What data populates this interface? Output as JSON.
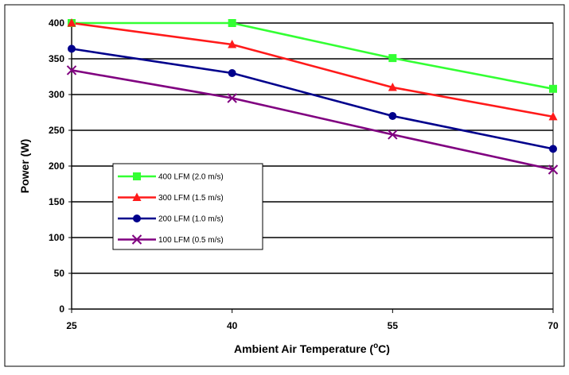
{
  "chart_data": {
    "type": "line",
    "title": "",
    "xlabel": "Ambient Air Temperature (",
    "xlabel_sup": "o",
    "xlabel_suffix": "C)",
    "ylabel": "Power (W)",
    "x": [
      25,
      40,
      55,
      70
    ],
    "x_tick_labels": [
      "25",
      "40",
      "55",
      "70"
    ],
    "ylim": [
      0,
      400
    ],
    "y_ticks": [
      0,
      50,
      100,
      150,
      200,
      250,
      300,
      350,
      400
    ],
    "y_tick_labels": [
      "0",
      "50",
      "100",
      "150",
      "200",
      "250",
      "300",
      "350",
      "400"
    ],
    "grid": "horizontal",
    "legend_position": "left",
    "series": [
      {
        "name": "400 LFM (2.0 m/s)",
        "values": [
          400,
          400,
          351,
          308
        ],
        "color": "#33ff33",
        "marker": "square"
      },
      {
        "name": "300 LFM (1.5 m/s)",
        "values": [
          400,
          370,
          310,
          269
        ],
        "color": "#ff1a1a",
        "marker": "triangle"
      },
      {
        "name": "200 LFM (1.0 m/s)",
        "values": [
          364,
          330,
          270,
          224
        ],
        "color": "#00008c",
        "marker": "circle"
      },
      {
        "name": "100 LFM (0.5 m/s)",
        "values": [
          334,
          295,
          244,
          195
        ],
        "color": "#800080",
        "marker": "x"
      }
    ]
  }
}
